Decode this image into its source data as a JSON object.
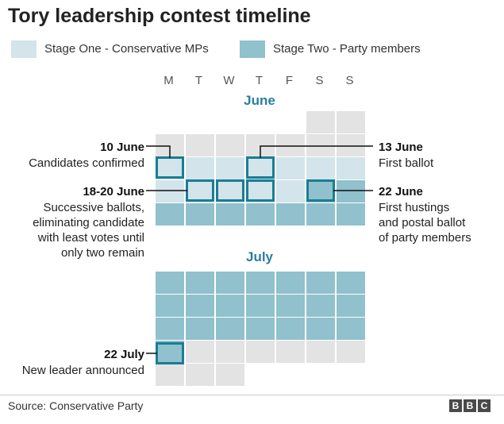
{
  "title": "Tory leadership contest timeline",
  "legend": {
    "stage_one": "Stage One - Conservative MPs",
    "stage_two": "Stage Two - Party members"
  },
  "colors": {
    "empty": "#e3e3e3",
    "stage_one": "#d3e4ea",
    "stage_two": "#90c1cc",
    "highlight": "#1a7d96",
    "leader_line": "#111111",
    "month_label": "#2a7ea3"
  },
  "weekdays": [
    "M",
    "T",
    "W",
    "T",
    "F",
    "S",
    "S"
  ],
  "months": {
    "june": {
      "label": "June",
      "rows": [
        [
          "none",
          "none",
          "none",
          "none",
          "none",
          "empty",
          "empty"
        ],
        [
          "empty",
          "empty",
          "empty",
          "empty",
          "empty",
          "empty",
          "empty"
        ],
        [
          "stage_one",
          "stage_one",
          "stage_one",
          "stage_one",
          "stage_one",
          "stage_one",
          "stage_one"
        ],
        [
          "stage_one",
          "stage_one",
          "stage_one",
          "stage_one",
          "stage_one",
          "stage_two",
          "stage_two"
        ],
        [
          "stage_two",
          "stage_two",
          "stage_two",
          "stage_two",
          "stage_two",
          "stage_two",
          "stage_two"
        ]
      ]
    },
    "july": {
      "label": "July",
      "rows": [
        [
          "stage_two",
          "stage_two",
          "stage_two",
          "stage_two",
          "stage_two",
          "stage_two",
          "stage_two"
        ],
        [
          "stage_two",
          "stage_two",
          "stage_two",
          "stage_two",
          "stage_two",
          "stage_two",
          "stage_two"
        ],
        [
          "stage_two",
          "stage_two",
          "stage_two",
          "stage_two",
          "stage_two",
          "stage_two",
          "stage_two"
        ],
        [
          "stage_two",
          "empty",
          "empty",
          "empty",
          "empty",
          "empty",
          "empty"
        ],
        [
          "empty",
          "empty",
          "empty",
          "none",
          "none",
          "none",
          "none"
        ]
      ]
    }
  },
  "annotations": {
    "june10": {
      "date": "10 June",
      "text": "Candidates confirmed"
    },
    "june13": {
      "date": "13 June",
      "text": "First ballot"
    },
    "june18_20": {
      "date": "18-20 June",
      "lines": [
        "Successive ballots,",
        "eliminating candidate",
        "with least votes until",
        "only two remain"
      ]
    },
    "june22": {
      "date": "22 June",
      "lines": [
        "First hustings",
        "and postal ballot",
        "of party members"
      ]
    },
    "july22": {
      "date": "22 July",
      "text": "New leader announced"
    }
  },
  "source": "Source: Conservative Party",
  "logo": [
    "B",
    "B",
    "C"
  ]
}
